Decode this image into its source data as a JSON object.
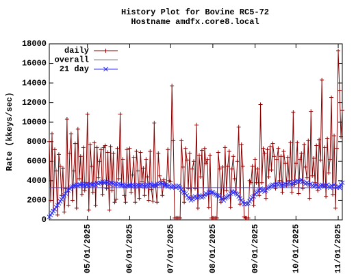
{
  "chart_data": {
    "type": "line",
    "title": "History Plot for Bovine RC5-72",
    "subtitle": "Hostname amdfx.core8.local",
    "y_label": "Rate (kkeys/sec)",
    "xlim": [
      "04/03/2025",
      "11/04/2025"
    ],
    "xticks": [
      "05/01/2025",
      "06/01/2025",
      "07/01/2025",
      "08/01/2025",
      "09/01/2025",
      "10/01/2025",
      "11/01/2025"
    ],
    "ylim": [
      0,
      18000
    ],
    "yticks": [
      0,
      2000,
      4000,
      6000,
      8000,
      10000,
      12000,
      14000,
      16000,
      18000
    ],
    "legend": "top-left",
    "x": [
      "04/03/2025",
      "04/04/2025",
      "04/05/2025",
      "04/06/2025",
      "04/07/2025",
      "04/08/2025",
      "04/09/2025",
      "04/10/2025",
      "04/11/2025",
      "04/12/2025",
      "04/13/2025",
      "04/14/2025",
      "04/15/2025",
      "04/16/2025",
      "04/17/2025",
      "04/18/2025",
      "04/19/2025",
      "04/20/2025",
      "04/21/2025",
      "04/22/2025",
      "04/23/2025",
      "04/24/2025",
      "04/25/2025",
      "04/26/2025",
      "04/27/2025",
      "04/28/2025",
      "04/29/2025",
      "04/30/2025",
      "05/01/2025",
      "05/02/2025",
      "05/03/2025",
      "05/04/2025",
      "05/05/2025",
      "05/06/2025",
      "05/07/2025",
      "05/08/2025",
      "05/09/2025",
      "05/10/2025",
      "05/11/2025",
      "05/12/2025",
      "05/13/2025",
      "05/14/2025",
      "05/15/2025",
      "05/16/2025",
      "05/17/2025",
      "05/18/2025",
      "05/19/2025",
      "05/20/2025",
      "05/21/2025",
      "05/22/2025",
      "05/23/2025",
      "05/24/2025",
      "05/25/2025",
      "05/26/2025",
      "05/27/2025",
      "05/28/2025",
      "05/29/2025",
      "05/30/2025",
      "05/31/2025",
      "06/01/2025",
      "06/02/2025",
      "06/03/2025",
      "06/04/2025",
      "06/05/2025",
      "06/06/2025",
      "06/07/2025",
      "06/08/2025",
      "06/09/2025",
      "06/10/2025",
      "06/11/2025",
      "06/12/2025",
      "06/13/2025",
      "06/14/2025",
      "06/15/2025",
      "06/16/2025",
      "06/17/2025",
      "06/18/2025",
      "06/19/2025",
      "06/20/2025",
      "06/21/2025",
      "06/22/2025",
      "06/23/2025",
      "06/24/2025",
      "06/25/2025",
      "06/26/2025",
      "06/27/2025",
      "06/28/2025",
      "06/29/2025",
      "06/30/2025",
      "07/01/2025",
      "07/02/2025",
      "07/03/2025",
      "07/04/2025",
      "07/05/2025",
      "07/06/2025",
      "07/07/2025",
      "07/08/2025",
      "07/09/2025",
      "07/10/2025",
      "07/11/2025",
      "07/12/2025",
      "07/13/2025",
      "07/14/2025",
      "07/15/2025",
      "07/16/2025",
      "07/17/2025",
      "07/18/2025",
      "07/19/2025",
      "07/20/2025",
      "07/21/2025",
      "07/22/2025",
      "07/23/2025",
      "07/24/2025",
      "07/25/2025",
      "07/26/2025",
      "07/27/2025",
      "07/28/2025",
      "07/29/2025",
      "07/30/2025",
      "07/31/2025",
      "08/01/2025",
      "08/02/2025",
      "08/03/2025",
      "08/04/2025",
      "08/05/2025",
      "08/06/2025",
      "08/07/2025",
      "08/08/2025",
      "08/09/2025",
      "08/10/2025",
      "08/11/2025",
      "08/12/2025",
      "08/13/2025",
      "08/14/2025",
      "08/15/2025",
      "08/16/2025",
      "08/17/2025",
      "08/18/2025",
      "08/19/2025",
      "08/20/2025",
      "08/21/2025",
      "08/22/2025",
      "08/23/2025",
      "08/24/2025",
      "08/25/2025",
      "08/26/2025",
      "08/27/2025",
      "08/28/2025",
      "08/29/2025",
      "08/30/2025",
      "08/31/2025",
      "09/01/2025",
      "09/02/2025",
      "09/03/2025",
      "09/04/2025",
      "09/05/2025",
      "09/06/2025",
      "09/07/2025",
      "09/08/2025",
      "09/09/2025",
      "09/10/2025",
      "09/11/2025",
      "09/12/2025",
      "09/13/2025",
      "09/14/2025",
      "09/15/2025",
      "09/16/2025",
      "09/17/2025",
      "09/18/2025",
      "09/19/2025",
      "09/20/2025",
      "09/21/2025",
      "09/22/2025",
      "09/23/2025",
      "09/24/2025",
      "09/25/2025",
      "09/26/2025",
      "09/27/2025",
      "09/28/2025",
      "09/29/2025",
      "09/30/2025",
      "10/01/2025",
      "10/02/2025",
      "10/03/2025",
      "10/04/2025",
      "10/05/2025",
      "10/06/2025",
      "10/07/2025",
      "10/08/2025",
      "10/09/2025",
      "10/10/2025",
      "10/11/2025",
      "10/12/2025",
      "10/13/2025",
      "10/14/2025",
      "10/15/2025",
      "10/16/2025",
      "10/17/2025",
      "10/18/2025",
      "10/19/2025",
      "10/20/2025",
      "10/21/2025",
      "10/22/2025",
      "10/23/2025",
      "10/24/2025",
      "10/25/2025",
      "10/26/2025",
      "10/27/2025",
      "10/28/2025",
      "10/29/2025",
      "10/30/2025",
      "10/31/2025",
      "11/01/2025",
      "11/02/2025",
      "11/03/2025",
      "11/04/2025"
    ],
    "series": [
      {
        "name": "daily",
        "color": "#8b0000",
        "marker": "plus",
        "values": [
          8000,
          2000,
          8800,
          1000,
          7200,
          5000,
          500,
          6700,
          5500,
          2500,
          5300,
          800,
          3200,
          10300,
          1500,
          6800,
          8800,
          2000,
          5000,
          7800,
          1200,
          9300,
          4200,
          6500,
          2600,
          7400,
          3000,
          3800,
          10800,
          1000,
          7700,
          5500,
          2800,
          7900,
          1500,
          7400,
          4300,
          6000,
          7200,
          2600,
          7400,
          7600,
          3200,
          6900,
          1000,
          7500,
          3000,
          6800,
          1800,
          2100,
          7300,
          4200,
          10800,
          3600,
          6200,
          2500,
          1800,
          7200,
          3500,
          7300,
          2800,
          4600,
          6400,
          1800,
          7000,
          5000,
          2200,
          6900,
          3900,
          5300,
          2500,
          6200,
          4400,
          2000,
          7000,
          3100,
          1900,
          9900,
          3500,
          1800,
          6800,
          4500,
          3900,
          2500,
          4100,
          3700,
          3500,
          7200,
          4000,
          3900,
          13700,
          8100,
          200,
          200,
          200,
          200,
          200,
          8100,
          5400,
          1800,
          7300,
          6100,
          3200,
          6800,
          2300,
          5200,
          6000,
          3200,
          9700,
          1200,
          6600,
          4400,
          7100,
          2500,
          7300,
          5800,
          6200,
          1300,
          6600,
          200,
          200,
          200,
          200,
          200,
          6900,
          5200,
          1800,
          5400,
          2200,
          7400,
          3000,
          5500,
          7000,
          1300,
          5200,
          6500,
          4200,
          2800,
          6000,
          9500,
          1600,
          7700,
          5500,
          300,
          200,
          200,
          200,
          4000,
          3800,
          5500,
          1500,
          6200,
          3800,
          5200,
          2500,
          11800,
          3800,
          7300,
          6800,
          2200,
          7200,
          4400,
          7500,
          5100,
          7800,
          6500,
          3200,
          6200,
          7300,
          4000,
          6500,
          2800,
          7000,
          5800,
          3500,
          6400,
          4000,
          7900,
          2800,
          11000,
          3600,
          5800,
          7900,
          2700,
          6200,
          6800,
          3200,
          7700,
          5400,
          4300,
          8100,
          2200,
          11100,
          4500,
          6300,
          3800,
          7600,
          3000,
          8200,
          6100,
          14300,
          3500,
          7400,
          2400,
          8300,
          4800,
          6200,
          12500,
          2600,
          8600,
          1200,
          7300,
          17300,
          13200,
          8500,
          11200
        ]
      },
      {
        "name": "overall",
        "color": "#4040ff",
        "x": [
          "04/03/2025",
          "11/04/2025"
        ],
        "values": [
          3300,
          3300
        ]
      },
      {
        "name": "21 day",
        "color": "#3030ff",
        "marker": "cross",
        "values": [
          300,
          500,
          700,
          900,
          1100,
          1300,
          1500,
          1700,
          1900,
          2100,
          2300,
          2500,
          2700,
          2900,
          3000,
          3200,
          3300,
          3400,
          3500,
          3500,
          3600,
          3500,
          3600,
          3600,
          3700,
          3600,
          3500,
          3600,
          3600,
          3500,
          3700,
          3600,
          3600,
          3700,
          3600,
          3800,
          3700,
          3800,
          3800,
          3900,
          3800,
          3800,
          3900,
          3800,
          3700,
          3800,
          3800,
          3700,
          3600,
          3700,
          3600,
          3700,
          3600,
          3500,
          3600,
          3500,
          3400,
          3500,
          3500,
          3600,
          3500,
          3600,
          3500,
          3400,
          3500,
          3600,
          3500,
          3500,
          3600,
          3500,
          3400,
          3500,
          3600,
          3500,
          3700,
          3600,
          3500,
          3600,
          3500,
          3700,
          3600,
          3700,
          3800,
          3700,
          3600,
          3500,
          3600,
          3400,
          3500,
          3400,
          3300,
          3500,
          3400,
          3300,
          3400,
          3500,
          3300,
          3100,
          2900,
          2800,
          2700,
          2500,
          2300,
          2200,
          2000,
          2100,
          2300,
          2400,
          2200,
          2300,
          2500,
          2400,
          2300,
          2400,
          2600,
          2700,
          2600,
          2800,
          2900,
          2800,
          2800,
          2700,
          2600,
          2500,
          2500,
          2400,
          2200,
          2100,
          2000,
          2200,
          2300,
          2400,
          2500,
          2700,
          2900,
          2800,
          2900,
          2700,
          2600,
          2400,
          2200,
          2000,
          1800,
          1600,
          1700,
          1600,
          1700,
          1900,
          2100,
          2300,
          2400,
          2600,
          2800,
          2900,
          3000,
          3200,
          3000,
          3100,
          2900,
          3000,
          3200,
          3300,
          3400,
          3500,
          3600,
          3500,
          3600,
          3700,
          3600,
          3700,
          3600,
          3500,
          3600,
          3700,
          3600,
          3700,
          3800,
          3700,
          3600,
          3800,
          3900,
          3900,
          4000,
          3900,
          4000,
          4100,
          3900,
          3800,
          3700,
          3800,
          3700,
          3600,
          3700,
          3500,
          3400,
          3500,
          3600,
          3400,
          3300,
          3500,
          3600,
          3500,
          3400,
          3500,
          3600,
          3400,
          3300,
          3500,
          3400,
          3600,
          3400,
          3300,
          3400,
          3300,
          3600,
          3800
        ]
      }
    ]
  }
}
